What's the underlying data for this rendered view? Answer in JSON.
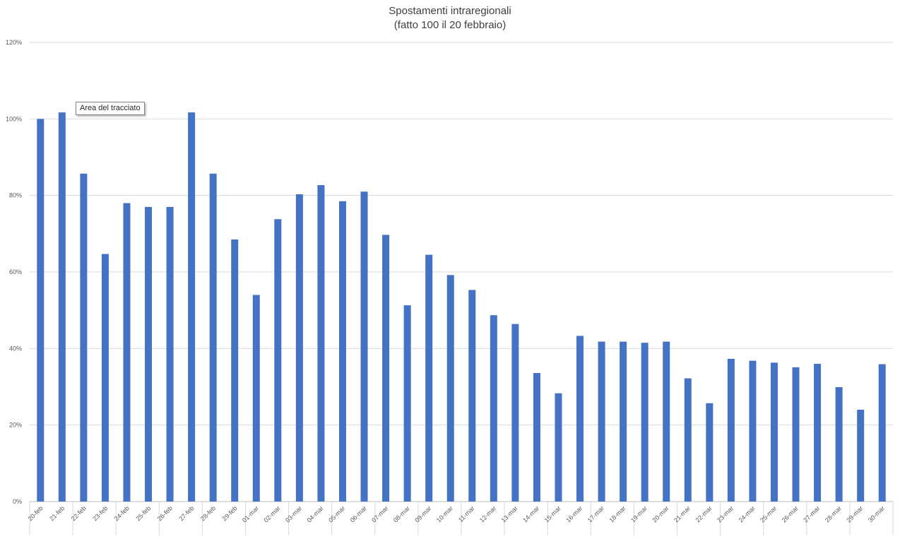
{
  "chart_data": {
    "type": "bar",
    "title": "Spostamenti intraregionali",
    "subtitle": "(fatto 100 il 20 febbraio)",
    "xlabel": "",
    "ylabel": "",
    "ylim": [
      0,
      120
    ],
    "yticks": [
      "0%",
      "20%",
      "40%",
      "60%",
      "80%",
      "100%",
      "120%"
    ],
    "grid": true,
    "bar_color": "#4472C4",
    "categories": [
      "20-feb",
      "21-feb",
      "22-feb",
      "23-feb",
      "24-feb",
      "25-feb",
      "26-feb",
      "27-feb",
      "28-feb",
      "29-feb",
      "01-mar",
      "02-mar",
      "03-mar",
      "04-mar",
      "05-mar",
      "06-mar",
      "07-mar",
      "08-mar",
      "09-mar",
      "10-mar",
      "11-mar",
      "12-mar",
      "13-mar",
      "14-mar",
      "15-mar",
      "16-mar",
      "17-mar",
      "18-mar",
      "19-mar",
      "20-mar",
      "21-mar",
      "22-mar",
      "23-mar",
      "24-mar",
      "25-mar",
      "26-mar",
      "27-mar",
      "28-mar",
      "29-mar",
      "30-mar"
    ],
    "values": [
      100,
      101.7,
      85.7,
      64.7,
      78,
      77,
      77,
      101.7,
      85.7,
      68.5,
      54,
      73.8,
      80.3,
      82.7,
      78.5,
      81,
      69.7,
      51.3,
      64.5,
      59.2,
      55.3,
      48.7,
      46.4,
      33.6,
      28.3,
      43.3,
      41.8,
      41.8,
      41.5,
      41.8,
      32.2,
      25.7,
      37.3,
      36.8,
      36.3,
      35.1,
      36,
      29.9,
      24,
      35.9
    ]
  },
  "tooltip": {
    "text": "Area del tracciato"
  }
}
